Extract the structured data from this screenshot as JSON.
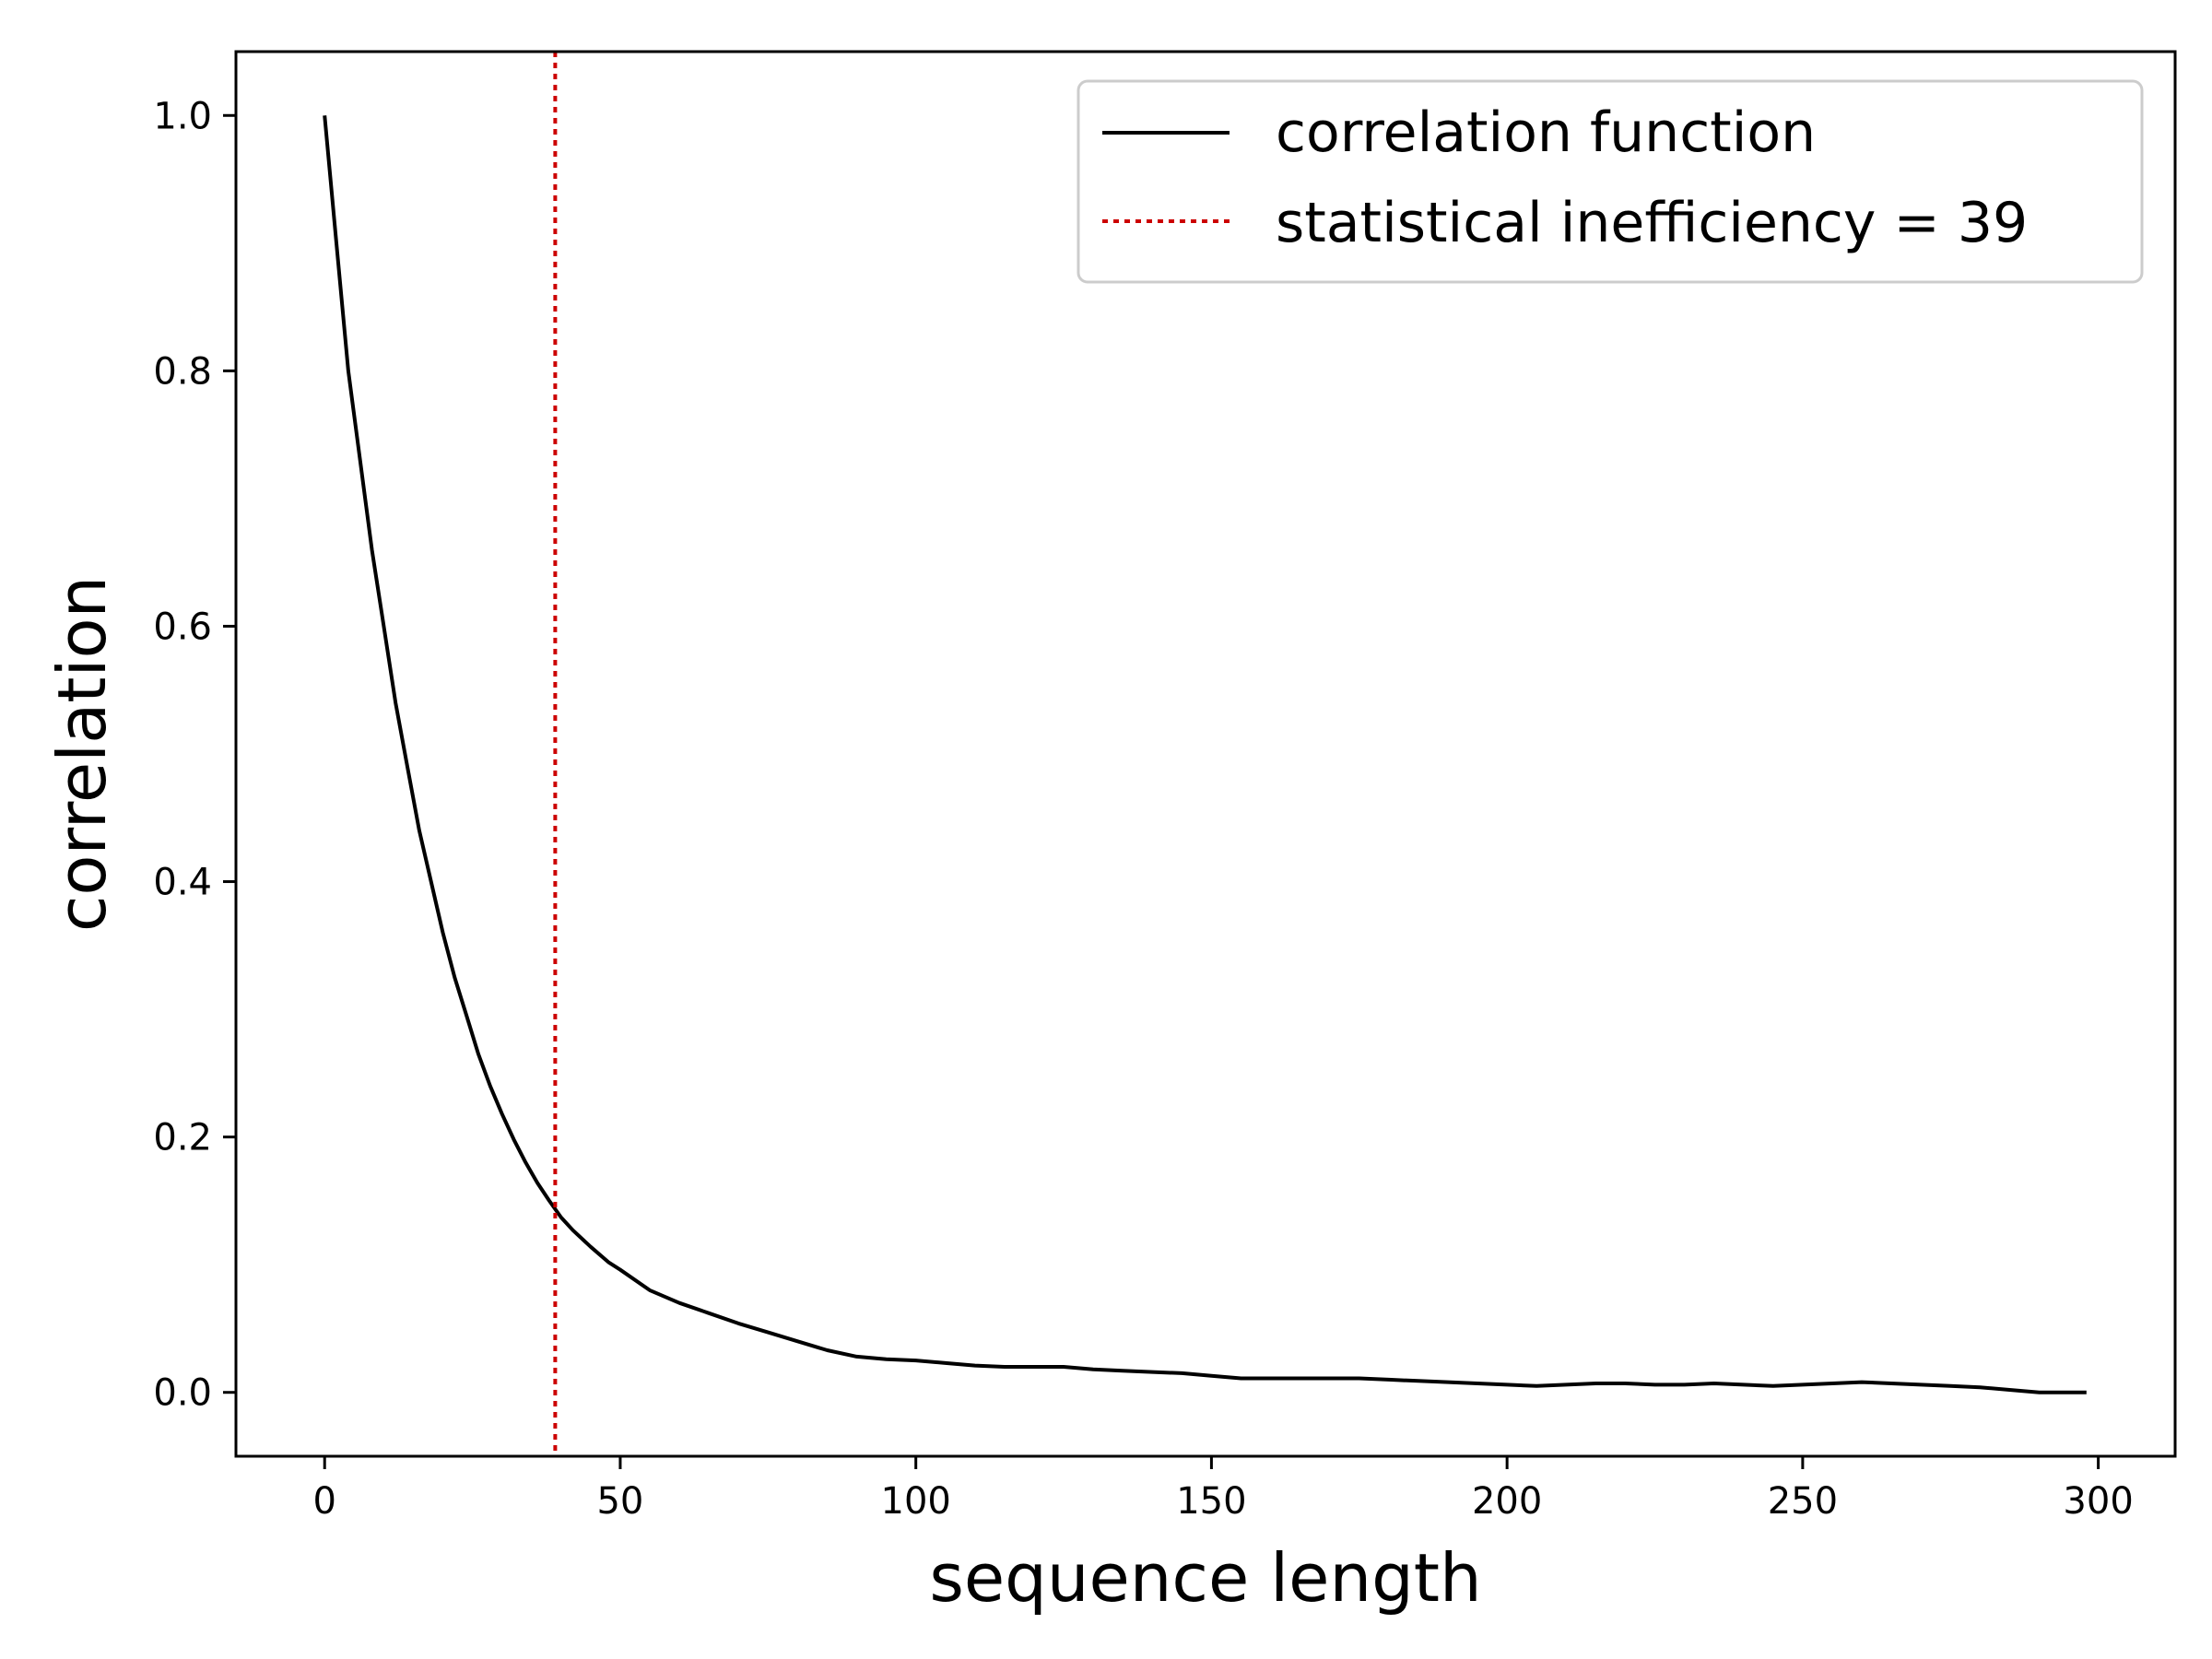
{
  "chart_data": {
    "type": "line",
    "xlabel": "sequence length",
    "ylabel": "correlation",
    "xlim": [
      -15,
      313
    ],
    "ylim": [
      -0.05,
      1.05
    ],
    "xticks": [
      0,
      50,
      100,
      150,
      200,
      250,
      300
    ],
    "xtick_labels": [
      "0",
      "50",
      "100",
      "150",
      "200",
      "250",
      "300"
    ],
    "yticks": [
      0.0,
      0.2,
      0.4,
      0.6,
      0.8,
      1.0
    ],
    "ytick_labels": [
      "0.0",
      "0.2",
      "0.4",
      "0.6",
      "0.8",
      "1.0"
    ],
    "grid": false,
    "legend_position": "top-right",
    "series": [
      {
        "name": "correlation function",
        "color": "#000000",
        "style": "solid",
        "x": [
          0,
          2,
          4,
          6,
          8,
          10,
          12,
          14,
          16,
          18,
          20,
          22,
          24,
          26,
          28,
          30,
          32,
          34,
          36,
          38,
          40,
          42,
          45,
          48,
          50,
          55,
          60,
          65,
          70,
          75,
          80,
          85,
          90,
          95,
          100,
          105,
          110,
          115,
          120,
          125,
          130,
          135,
          140,
          145,
          150,
          155,
          160,
          165,
          170,
          175,
          180,
          185,
          190,
          195,
          200,
          205,
          210,
          215,
          220,
          225,
          230,
          235,
          240,
          245,
          250,
          255,
          260,
          265,
          270,
          275,
          280,
          285,
          290,
          295,
          298
        ],
        "y": [
          1.0,
          0.9,
          0.8,
          0.73,
          0.66,
          0.6,
          0.54,
          0.49,
          0.44,
          0.4,
          0.36,
          0.325,
          0.295,
          0.265,
          0.24,
          0.218,
          0.198,
          0.18,
          0.164,
          0.15,
          0.137,
          0.127,
          0.114,
          0.102,
          0.096,
          0.08,
          0.07,
          0.062,
          0.054,
          0.047,
          0.04,
          0.033,
          0.028,
          0.026,
          0.025,
          0.023,
          0.021,
          0.02,
          0.02,
          0.02,
          0.018,
          0.017,
          0.016,
          0.015,
          0.013,
          0.011,
          0.011,
          0.011,
          0.011,
          0.011,
          0.01,
          0.009,
          0.008,
          0.007,
          0.006,
          0.005,
          0.006,
          0.007,
          0.007,
          0.006,
          0.006,
          0.007,
          0.006,
          0.005,
          0.006,
          0.007,
          0.008,
          0.007,
          0.006,
          0.005,
          0.004,
          0.002,
          0.0,
          0.0,
          0.0
        ]
      },
      {
        "name": "statistical inefficiency = 39",
        "color": "#cc0000",
        "style": "dotted",
        "vline_x": 39
      }
    ]
  }
}
